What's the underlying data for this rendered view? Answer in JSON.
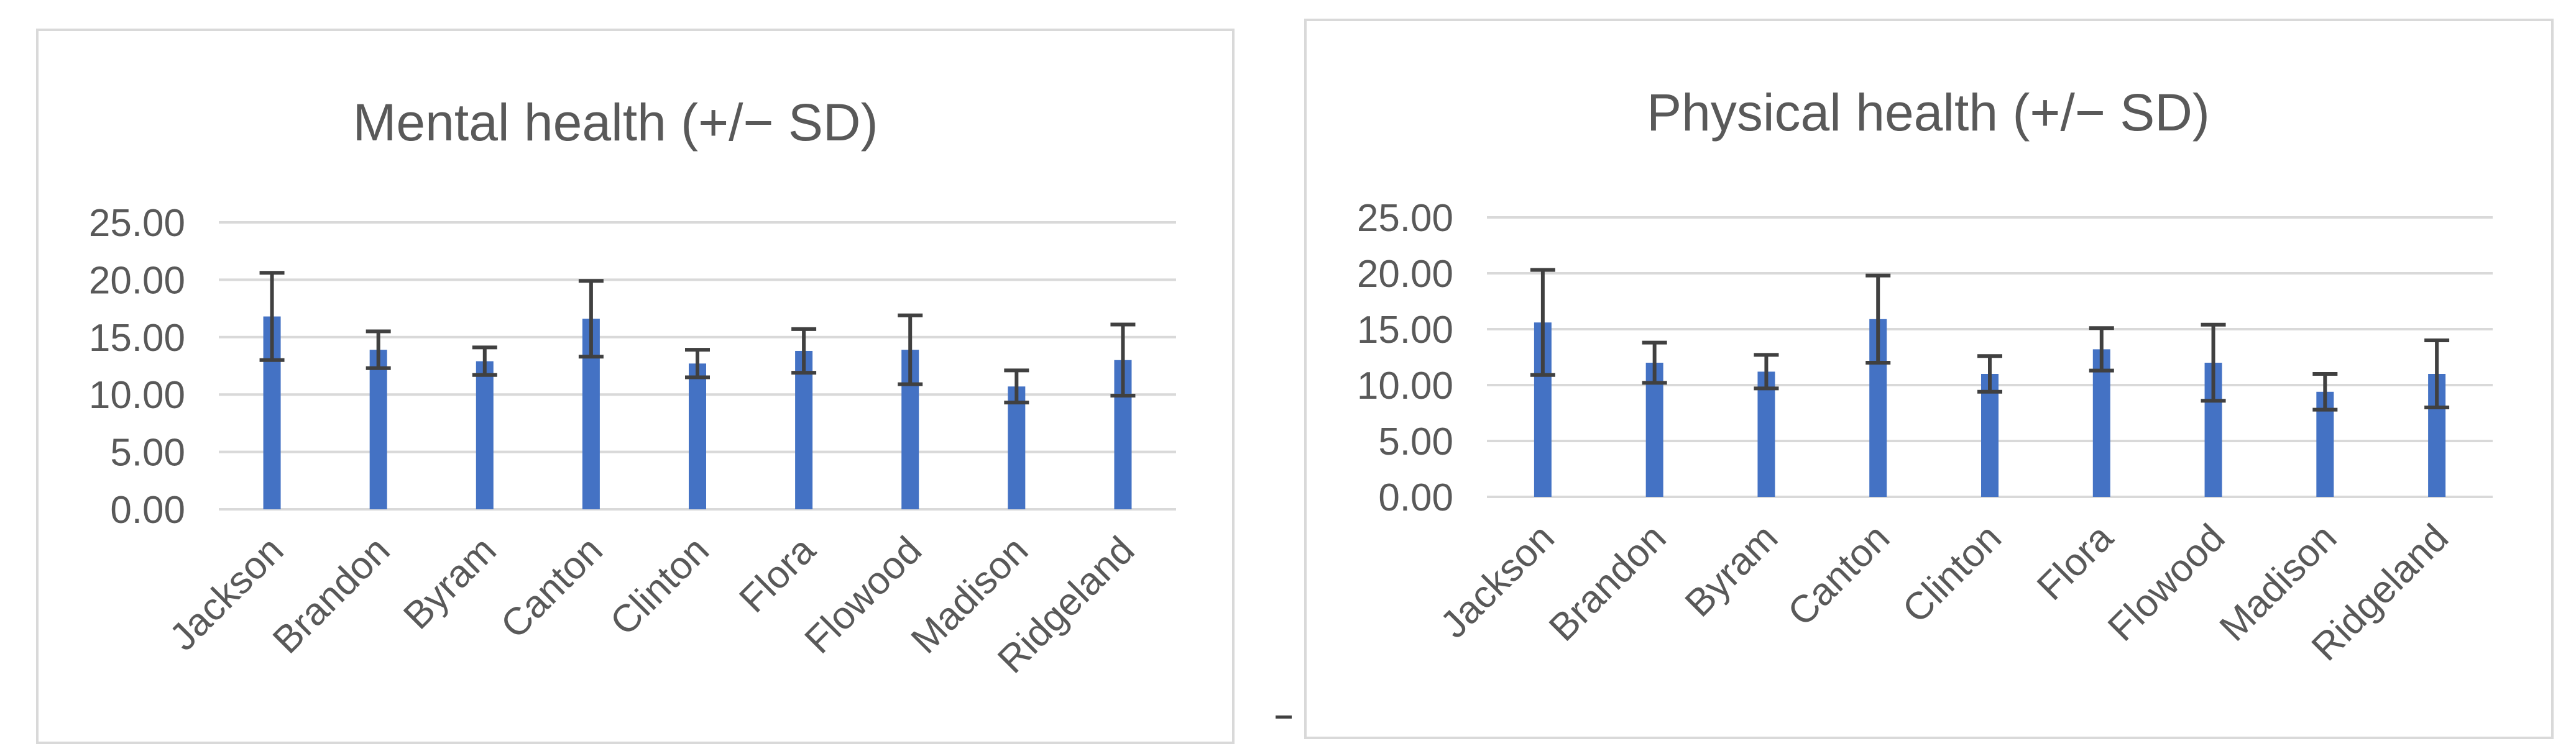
{
  "chart_data": [
    {
      "type": "bar",
      "title": "Mental health (+/− SD)",
      "xlabel": "",
      "ylabel": "",
      "ylim": [
        0,
        25
      ],
      "yticks": [
        "0.00",
        "5.00",
        "10.00",
        "15.00",
        "20.00",
        "25.00"
      ],
      "grid": true,
      "categories": [
        "Jackson",
        "Brandon",
        "Byram",
        "Canton",
        "Clinton",
        "Flora",
        "Flowood",
        "Madison",
        "Ridgeland"
      ],
      "values": [
        16.8,
        13.9,
        12.9,
        16.6,
        12.7,
        13.8,
        13.9,
        10.7,
        13.0
      ],
      "sd": [
        3.8,
        1.6,
        1.2,
        3.3,
        1.2,
        1.9,
        3.0,
        1.4,
        3.1
      ],
      "color": "#4472c4",
      "error_bar_color": "#404040"
    },
    {
      "type": "bar",
      "title": "Physical health (+/− SD)",
      "xlabel": "",
      "ylabel": "",
      "ylim": [
        0,
        25
      ],
      "yticks": [
        "0.00",
        "5.00",
        "10.00",
        "15.00",
        "20.00",
        "25.00"
      ],
      "grid": true,
      "categories": [
        "Jackson",
        "Brandon",
        "Byram",
        "Canton",
        "Clinton",
        "Flora",
        "Flowood",
        "Madison",
        "Ridgeland"
      ],
      "values": [
        15.6,
        12.0,
        11.2,
        15.9,
        11.0,
        13.2,
        12.0,
        9.4,
        11.0
      ],
      "sd": [
        4.7,
        1.8,
        1.5,
        3.9,
        1.6,
        1.9,
        3.4,
        1.6,
        3.0
      ],
      "color": "#4472c4",
      "error_bar_color": "#404040"
    }
  ]
}
